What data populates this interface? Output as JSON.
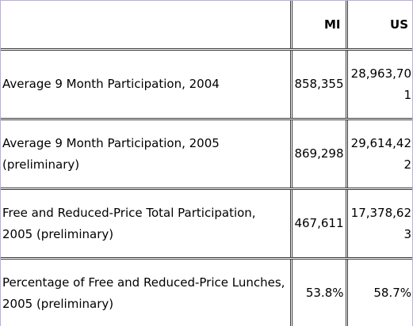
{
  "table": {
    "headers": [
      "",
      "MI",
      "US"
    ],
    "rows": [
      {
        "label": "Average 9 Month Participation, 2004",
        "mi": "858,355",
        "us": "28,963,701"
      },
      {
        "label": "Average 9 Month Participation, 2005 (preliminary)",
        "mi": "869,298",
        "us": "29,614,422"
      },
      {
        "label": "Free and Reduced-Price Total Participation, 2005 (preliminary)",
        "mi": "467,611",
        "us": "17,378,623"
      },
      {
        "label": "Percentage of Free and Reduced-Price Lunches, 2005 (preliminary)",
        "mi": "53.8%",
        "us": "58.7%"
      }
    ]
  }
}
